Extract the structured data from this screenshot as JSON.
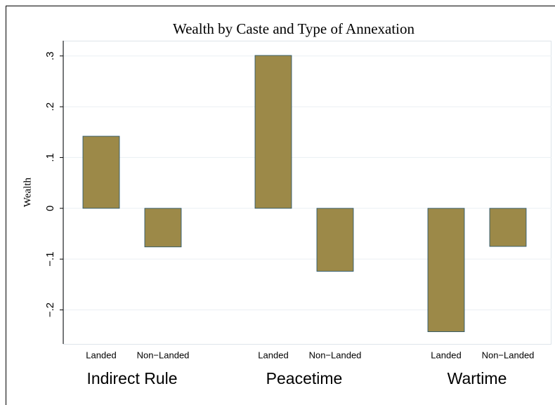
{
  "chart_data": {
    "type": "bar",
    "title": "Wealth by Caste and Type of Annexation",
    "ylabel": "Wealth",
    "categories": [
      "Indirect Rule",
      "Peacetime",
      "Wartime"
    ],
    "series": [
      {
        "name": "Landed",
        "color": "#9c8948",
        "values": [
          0.142,
          0.301,
          -0.243
        ]
      },
      {
        "name": "Non−Landed",
        "color": "#9c8948",
        "values": [
          -0.076,
          -0.124,
          -0.075
        ]
      }
    ],
    "ylim": [
      -0.267,
      0.33
    ],
    "yticks": [
      {
        "value": -0.2,
        "label": "−.2"
      },
      {
        "value": -0.1,
        "label": "−.1"
      },
      0,
      {
        "value": 0.1,
        "label": ".1"
      },
      {
        "value": 0.2,
        "label": ".2"
      },
      {
        "value": 0.3,
        "label": ".3"
      }
    ],
    "grid": true
  }
}
